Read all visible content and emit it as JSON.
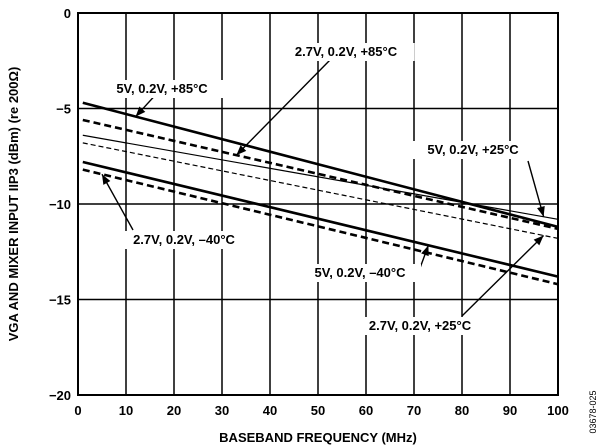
{
  "chart_data": {
    "type": "line",
    "xlabel": "BASEBAND FREQUENCY (MHz)",
    "ylabel": "VGA AND MIXER INPUT IIP3 (dBm) (re 200Ω)",
    "xlim": [
      0,
      100
    ],
    "ylim": [
      -20,
      0
    ],
    "x_ticks": [
      "0",
      "10",
      "20",
      "30",
      "40",
      "50",
      "60",
      "70",
      "80",
      "90",
      "100"
    ],
    "y_ticks": [
      "0",
      "−5",
      "−10",
      "−15",
      "−20"
    ],
    "grid": true,
    "figure_id": "03678-025",
    "series": [
      {
        "name": "5V, 0.2V, +85°C",
        "style": "thick-solid",
        "x": [
          1,
          100
        ],
        "y": [
          -4.7,
          -11.2
        ]
      },
      {
        "name": "2.7V, 0.2V, +85°C",
        "style": "thick-dashed",
        "x": [
          1,
          100
        ],
        "y": [
          -5.6,
          -11.3
        ]
      },
      {
        "name": "5V, 0.2V, +25°C",
        "style": "thin-solid",
        "x": [
          1,
          100
        ],
        "y": [
          -6.4,
          -10.8
        ]
      },
      {
        "name": "2.7V, 0.2V, +25°C",
        "style": "thin-dashed",
        "x": [
          1,
          100
        ],
        "y": [
          -6.8,
          -11.8
        ]
      },
      {
        "name": "5V, 0.2V, –40°C",
        "style": "thick-solid",
        "x": [
          1,
          100
        ],
        "y": [
          -7.8,
          -13.8
        ]
      },
      {
        "name": "2.7V, 0.2V, –40°C",
        "style": "thick-dashed",
        "x": [
          1,
          100
        ],
        "y": [
          -8.2,
          -14.2
        ]
      }
    ],
    "annotations": [
      {
        "text": "2.7V, 0.2V, +85°C",
        "arrow_to_series": 1,
        "arrow_x": 33
      },
      {
        "text": "5V, 0.2V, +85°C",
        "arrow_to_series": 0,
        "arrow_x": 12
      },
      {
        "text": "5V, 0.2V, +25°C",
        "arrow_to_series": 2,
        "arrow_x": 97
      },
      {
        "text": "2.7V, 0.2V, –40°C",
        "arrow_to_series": 5,
        "arrow_x": 5
      },
      {
        "text": "5V, 0.2V, –40°C",
        "arrow_to_series": 4,
        "arrow_x": 73
      },
      {
        "text": "2.7V, 0.2V, +25°C",
        "arrow_to_series": 3,
        "arrow_x": 97
      }
    ]
  }
}
